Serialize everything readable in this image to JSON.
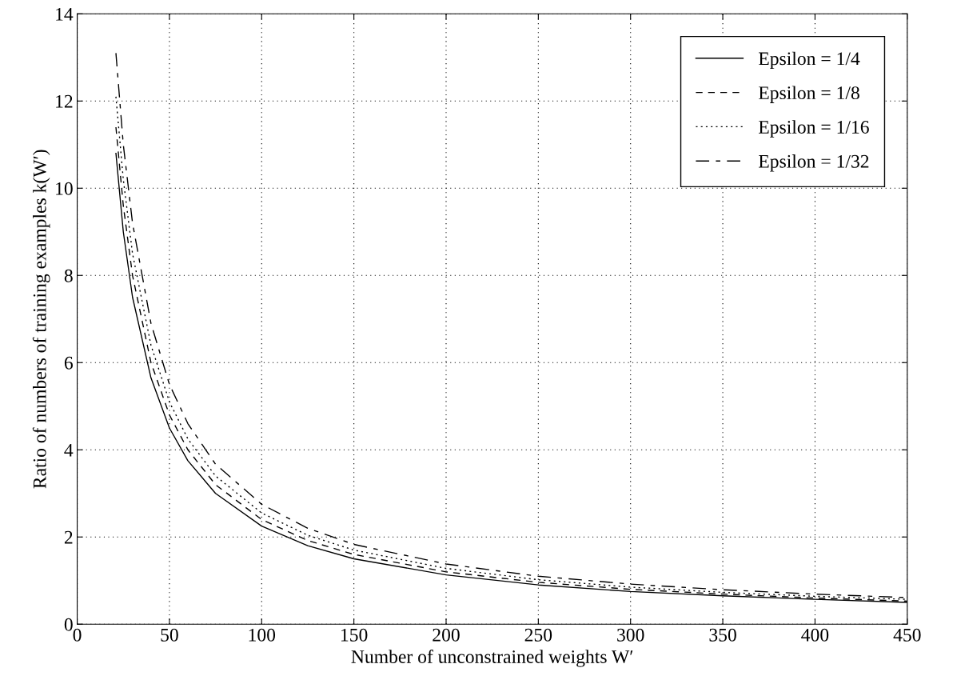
{
  "chart_data": {
    "type": "line",
    "xlabel": "Number of unconstrained weights W′",
    "ylabel": "Ratio of numbers of training examples k(W′)",
    "x": [
      21,
      25,
      30,
      40,
      50,
      60,
      75,
      100,
      125,
      150,
      200,
      250,
      300,
      350,
      400,
      450
    ],
    "series": [
      {
        "name": "Epsilon = 1/4",
        "color": "#000000",
        "line_style": "solid",
        "values": [
          10.8,
          9.0,
          7.5,
          5.65,
          4.5,
          3.75,
          3.0,
          2.25,
          1.8,
          1.5,
          1.13,
          0.9,
          0.75,
          0.65,
          0.57,
          0.5
        ]
      },
      {
        "name": "Epsilon = 1/8",
        "color": "#000000",
        "line_style": "dashed",
        "values": [
          11.4,
          9.6,
          8.0,
          6.0,
          4.8,
          4.0,
          3.2,
          2.4,
          1.92,
          1.6,
          1.2,
          0.96,
          0.8,
          0.69,
          0.6,
          0.53
        ]
      },
      {
        "name": "Epsilon = 1/16",
        "color": "#000000",
        "line_style": "dotted",
        "values": [
          12.1,
          10.2,
          8.5,
          6.4,
          5.1,
          4.25,
          3.4,
          2.55,
          2.04,
          1.7,
          1.28,
          1.02,
          0.85,
          0.73,
          0.64,
          0.57
        ]
      },
      {
        "name": "Epsilon = 1/32",
        "color": "#000000",
        "line_style": "longdash",
        "values": [
          13.1,
          11.0,
          9.2,
          6.9,
          5.5,
          4.6,
          3.67,
          2.75,
          2.2,
          1.83,
          1.38,
          1.1,
          0.92,
          0.79,
          0.69,
          0.61
        ]
      }
    ],
    "xlim": [
      0,
      450
    ],
    "xticks": [
      0,
      50,
      100,
      150,
      200,
      250,
      300,
      350,
      400,
      450
    ],
    "ylim": [
      0,
      14
    ],
    "yticks": [
      0,
      2,
      4,
      6,
      8,
      10,
      12,
      14
    ],
    "grid": true,
    "legend": "top right",
    "marker": "none"
  }
}
